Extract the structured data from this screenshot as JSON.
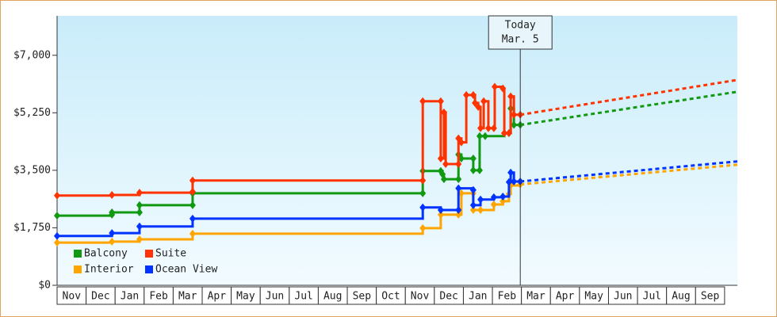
{
  "chart_data": {
    "type": "step-line",
    "ylim": [
      0,
      8200
    ],
    "yticks": [
      {
        "value": 0,
        "label": "$0"
      },
      {
        "value": 1750,
        "label": "$1,750"
      },
      {
        "value": 3500,
        "label": "$3,500"
      },
      {
        "value": 5250,
        "label": "$5,250"
      },
      {
        "value": 7000,
        "label": "$7,000"
      }
    ],
    "xlim": [
      0,
      23.44
    ],
    "xticks": [
      {
        "value": 0,
        "label": "Nov"
      },
      {
        "value": 1,
        "label": "Dec"
      },
      {
        "value": 2,
        "label": "Jan"
      },
      {
        "value": 3,
        "label": "Feb"
      },
      {
        "value": 4,
        "label": "Mar"
      },
      {
        "value": 5,
        "label": "Apr"
      },
      {
        "value": 6,
        "label": "May"
      },
      {
        "value": 7,
        "label": "Jun"
      },
      {
        "value": 8,
        "label": "Jul"
      },
      {
        "value": 9,
        "label": "Aug"
      },
      {
        "value": 10,
        "label": "Sep"
      },
      {
        "value": 11,
        "label": "Oct"
      },
      {
        "value": 12,
        "label": "Nov"
      },
      {
        "value": 13,
        "label": "Dec"
      },
      {
        "value": 14,
        "label": "Jan"
      },
      {
        "value": 15,
        "label": "Feb"
      },
      {
        "value": 16,
        "label": "Mar"
      },
      {
        "value": 17,
        "label": "Apr"
      },
      {
        "value": 18,
        "label": "May"
      },
      {
        "value": 19,
        "label": "Jun"
      },
      {
        "value": 20,
        "label": "Jul"
      },
      {
        "value": 21,
        "label": "Aug"
      },
      {
        "value": 22,
        "label": "Sep"
      }
    ],
    "legend": "lower left",
    "annotation": {
      "x": 15.96,
      "label": "Today",
      "date": "Mar. 5"
    },
    "series": [
      {
        "name": "Balcony",
        "color": "#119911",
        "x": [
          0,
          1.89,
          1.89,
          2.84,
          2.84,
          4.67,
          4.67,
          12.6,
          12.6,
          13.22,
          13.28,
          13.33,
          13.83,
          13.83,
          13.93,
          14.34,
          14.34,
          14.56,
          14.56,
          14.75,
          15.41,
          15.57,
          15.63,
          15.74,
          15.96
        ],
        "values": [
          2120,
          2150,
          2220,
          2220,
          2440,
          2440,
          2800,
          2800,
          3480,
          3480,
          3380,
          3230,
          3230,
          3980,
          3860,
          3860,
          3500,
          3500,
          4540,
          4540,
          4630,
          4630,
          5380,
          4880,
          4880
        ],
        "forecast_x": [
          15.96,
          23.44
        ],
        "forecast_values": [
          4880,
          5890
        ]
      },
      {
        "name": "Suite",
        "color": "#ff3300",
        "x": [
          0,
          1.89,
          2.84,
          4.67,
          4.67,
          12.6,
          12.6,
          13.22,
          13.22,
          13.33,
          13.39,
          13.83,
          13.83,
          13.93,
          14.1,
          14.34,
          14.4,
          14.51,
          14.59,
          14.7,
          14.86,
          15.05,
          15.08,
          15.36,
          15.41,
          15.57,
          15.63,
          15.74,
          15.96
        ],
        "values": [
          2730,
          2750,
          2820,
          2850,
          3190,
          3190,
          5600,
          5600,
          3860,
          5260,
          3690,
          3690,
          4470,
          4350,
          5790,
          5790,
          5550,
          5430,
          4780,
          5600,
          4780,
          4780,
          6040,
          5990,
          4630,
          4630,
          5750,
          5190,
          5190
        ],
        "forecast_x": [
          15.96,
          23.44
        ],
        "forecast_values": [
          5190,
          6250
        ]
      },
      {
        "name": "Interior",
        "color": "#ffa500",
        "x": [
          0,
          1.89,
          2.84,
          4.67,
          12.6,
          13.22,
          13.83,
          13.93,
          14.34,
          14.34,
          14.59,
          15.05,
          15.36,
          15.57,
          15.63,
          15.96
        ],
        "values": [
          1300,
          1330,
          1400,
          1570,
          1740,
          2150,
          2150,
          2800,
          2800,
          2290,
          2290,
          2460,
          2560,
          2780,
          3040,
          3070
        ],
        "forecast_x": [
          15.96,
          23.44
        ],
        "forecast_values": [
          3070,
          3670
        ]
      },
      {
        "name": "Ocean View",
        "color": "#0033ff",
        "x": [
          0,
          1.89,
          2.84,
          4.67,
          12.6,
          13.22,
          13.83,
          13.83,
          14.34,
          14.34,
          14.59,
          15.05,
          15.36,
          15.57,
          15.63,
          15.74,
          15.96
        ],
        "values": [
          1500,
          1590,
          1790,
          2030,
          2370,
          2290,
          2290,
          2950,
          2900,
          2440,
          2610,
          2680,
          2700,
          3140,
          3430,
          3160,
          3160
        ],
        "forecast_x": [
          15.96,
          23.44
        ],
        "forecast_values": [
          3160,
          3770
        ]
      }
    ]
  }
}
